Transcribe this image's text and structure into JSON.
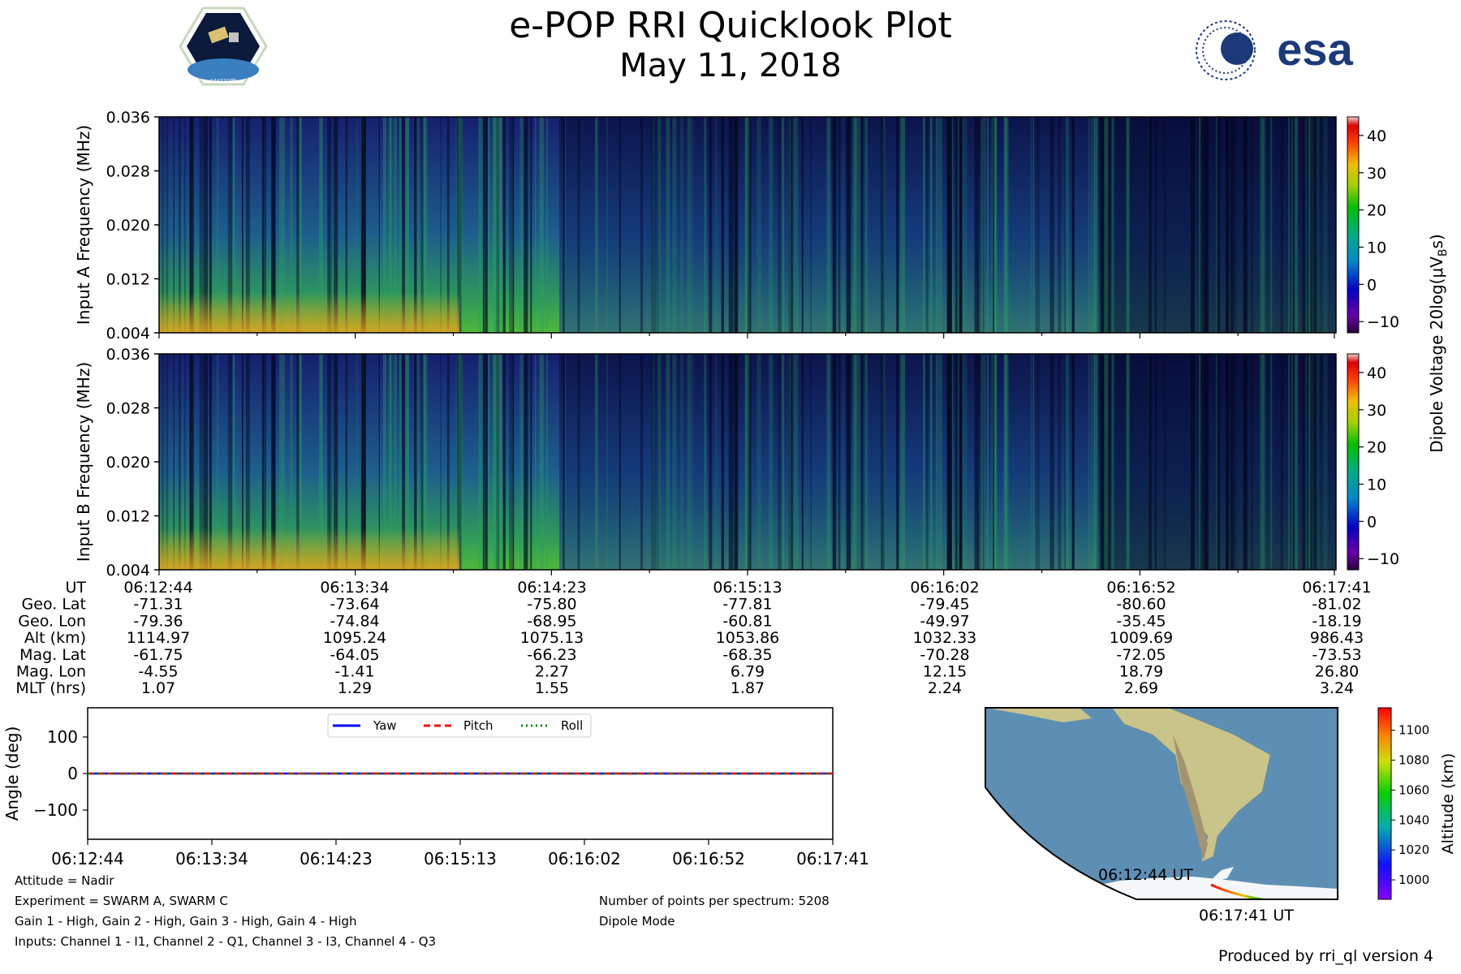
{
  "title": "e-POP RRI Quicklook Plot",
  "subtitle": "May 11, 2018",
  "logos": {
    "left_mission": "CASSIOPE",
    "right_agency": "esa"
  },
  "colors": {
    "yaw": "#0000ff",
    "pitch": "#ff0000",
    "roll": "#008000",
    "spectrogram_low": "#1a1a6e",
    "spectrogram_high": "#39b54a"
  },
  "chart_data": [
    {
      "type": "heatmap",
      "panel": "input-a",
      "ylabel": "Input A Frequency (MHz)",
      "y_ticks": [
        "0.004",
        "0.012",
        "0.020",
        "0.028",
        "0.036"
      ],
      "ylim": [
        0.004,
        0.036
      ],
      "x_range": [
        "06:12:44",
        "06:17:41"
      ]
    },
    {
      "type": "heatmap",
      "panel": "input-b",
      "ylabel": "Input B Frequency (MHz)",
      "y_ticks": [
        "0.004",
        "0.012",
        "0.020",
        "0.028",
        "0.036"
      ],
      "ylim": [
        0.004,
        0.036
      ],
      "x_range": [
        "06:12:44",
        "06:17:41"
      ]
    },
    {
      "type": "colorbar",
      "label": "Dipole Voltage 20log(μV",
      "label_sub": "B",
      "label_end": "s)",
      "ticks": [
        "−10",
        "0",
        "10",
        "20",
        "30",
        "40"
      ],
      "range": [
        -13,
        45
      ]
    },
    {
      "type": "table",
      "row_labels": [
        "UT",
        "Geo. Lat",
        "Geo. Lon",
        "Alt (km)",
        "Mag. Lat",
        "Mag. Lon",
        "MLT (hrs)"
      ],
      "columns": [
        [
          "06:12:44",
          "-71.31",
          "-79.36",
          "1114.97",
          "-61.75",
          "-4.55",
          "1.07"
        ],
        [
          "06:13:34",
          "-73.64",
          "-74.84",
          "1095.24",
          "-64.05",
          "-1.41",
          "1.29"
        ],
        [
          "06:14:23",
          "-75.80",
          "-68.95",
          "1075.13",
          "-66.23",
          "2.27",
          "1.55"
        ],
        [
          "06:15:13",
          "-77.81",
          "-60.81",
          "1053.86",
          "-68.35",
          "6.79",
          "1.87"
        ],
        [
          "06:16:02",
          "-79.45",
          "-49.97",
          "1032.33",
          "-70.28",
          "12.15",
          "2.24"
        ],
        [
          "06:16:52",
          "-80.60",
          "-35.45",
          "1009.69",
          "-72.05",
          "18.79",
          "2.69"
        ],
        [
          "06:17:41",
          "-81.02",
          "-18.19",
          "986.43",
          "-73.53",
          "26.80",
          "3.24"
        ]
      ]
    },
    {
      "type": "line",
      "ylabel": "Angle (deg)",
      "x_ticks": [
        "06:12:44",
        "06:13:34",
        "06:14:23",
        "06:15:13",
        "06:16:02",
        "06:16:52",
        "06:17:41"
      ],
      "y_ticks": [
        "100",
        "0",
        "−100"
      ],
      "y_tick_values": [
        100,
        0,
        -100
      ],
      "ylim": [
        -180,
        180
      ],
      "series": [
        {
          "name": "Yaw",
          "style": "solid",
          "values": [
            0,
            0,
            0,
            0,
            0,
            0,
            0
          ]
        },
        {
          "name": "Pitch",
          "style": "dashed",
          "values": [
            0,
            0,
            0,
            0,
            0,
            0,
            0
          ]
        },
        {
          "name": "Roll",
          "style": "dotted",
          "values": [
            0,
            0,
            0,
            0,
            0,
            0,
            0
          ]
        }
      ],
      "legend": "top-center"
    },
    {
      "type": "map",
      "track_labels": [
        "06:12:44 UT",
        "06:17:41 UT"
      ],
      "colorbar_label": "Altitude (km)",
      "colorbar_ticks": [
        "1000",
        "1020",
        "1040",
        "1060",
        "1080",
        "1100"
      ],
      "colorbar_range": [
        987,
        1115
      ]
    }
  ],
  "notes_left": [
    "Attitude = Nadir",
    "Experiment = SWARM A, SWARM C",
    "Gain 1 - High, Gain 2 - High, Gain 3 - High, Gain 4 - High",
    "Inputs: Channel 1 - I1, Channel 2 - Q1, Channel 3 - I3, Channel 4 - Q3"
  ],
  "notes_right": [
    "Number of points per spectrum: 5208",
    "Dipole Mode"
  ],
  "footer": "Produced by rri_ql version 4"
}
